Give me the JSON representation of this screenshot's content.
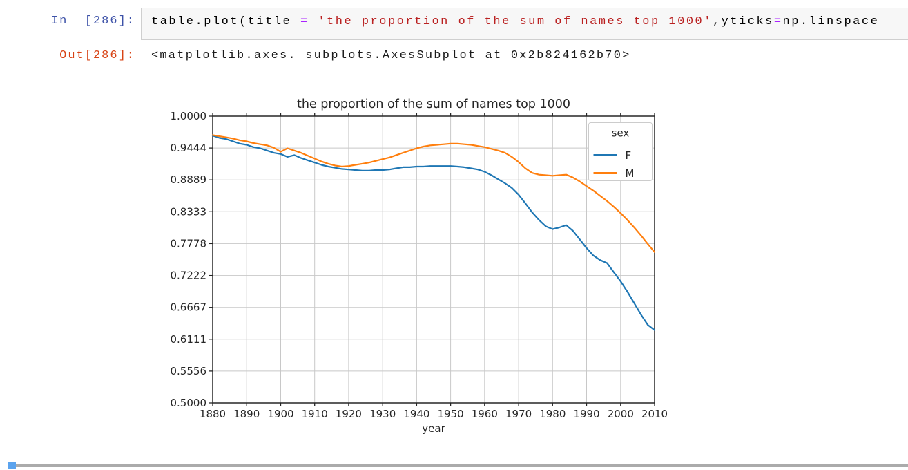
{
  "notebook": {
    "input_prompt": "In  [286]:",
    "output_prompt": "Out[286]:",
    "code_tokens": [
      {
        "text": "table.plot(title ",
        "type": "plain"
      },
      {
        "text": "= ",
        "type": "operator"
      },
      {
        "text": "'the proportion of the sum of names top 1000'",
        "type": "string"
      },
      {
        "text": ",yticks",
        "type": "plain"
      },
      {
        "text": "=",
        "type": "operator"
      },
      {
        "text": "np.linspace",
        "type": "plain"
      }
    ],
    "output_text": "<matplotlib.axes._subplots.AxesSubplot at 0x2b824162b70>"
  },
  "colors": {
    "input_prompt": "#3d52a8",
    "output_prompt": "#d84315",
    "operator_token": "#AA22FF",
    "string_token": "#BA2121",
    "next_cell_accent": "#5ba3ee",
    "grid_line": "#c8c8c8",
    "axis_text": "#262626"
  },
  "chart_data": {
    "type": "line",
    "title": "the proportion of the sum of names top 1000",
    "xlabel": "year",
    "ylabel": "",
    "legend_title": "sex",
    "legend_position": "upper right",
    "grid": true,
    "xlim": [
      1880,
      2010
    ],
    "ylim": [
      0.5,
      1.0
    ],
    "xticks": [
      1880,
      1890,
      1900,
      1910,
      1920,
      1930,
      1940,
      1950,
      1960,
      1970,
      1980,
      1990,
      2000,
      2010
    ],
    "yticks": [
      1.0,
      0.944444,
      0.888889,
      0.833333,
      0.777778,
      0.722222,
      0.666667,
      0.611111,
      0.555556,
      0.5
    ],
    "ytick_labels": [
      "1.0000",
      "0.9444",
      "0.8889",
      "0.8333",
      "0.7778",
      "0.7222",
      "0.6667",
      "0.6111",
      "0.5556",
      "0.5000"
    ],
    "x": [
      1880,
      1882,
      1884,
      1886,
      1888,
      1890,
      1892,
      1894,
      1896,
      1898,
      1900,
      1902,
      1904,
      1906,
      1908,
      1910,
      1912,
      1914,
      1916,
      1918,
      1920,
      1922,
      1924,
      1926,
      1928,
      1930,
      1932,
      1934,
      1936,
      1938,
      1940,
      1942,
      1944,
      1946,
      1948,
      1950,
      1952,
      1954,
      1956,
      1958,
      1960,
      1962,
      1964,
      1966,
      1968,
      1970,
      1972,
      1974,
      1976,
      1978,
      1980,
      1982,
      1984,
      1986,
      1988,
      1990,
      1992,
      1994,
      1996,
      1998,
      2000,
      2002,
      2004,
      2006,
      2008,
      2010
    ],
    "series": [
      {
        "name": "F",
        "color": "#1f77b4",
        "values": [
          0.966,
          0.962,
          0.96,
          0.956,
          0.952,
          0.95,
          0.946,
          0.944,
          0.94,
          0.936,
          0.934,
          0.929,
          0.932,
          0.927,
          0.923,
          0.919,
          0.915,
          0.912,
          0.91,
          0.908,
          0.907,
          0.906,
          0.905,
          0.905,
          0.906,
          0.906,
          0.907,
          0.909,
          0.911,
          0.911,
          0.912,
          0.912,
          0.913,
          0.913,
          0.913,
          0.913,
          0.912,
          0.911,
          0.909,
          0.907,
          0.903,
          0.897,
          0.89,
          0.883,
          0.875,
          0.863,
          0.848,
          0.832,
          0.819,
          0.808,
          0.803,
          0.806,
          0.81,
          0.8,
          0.785,
          0.77,
          0.757,
          0.749,
          0.744,
          0.728,
          0.712,
          0.694,
          0.674,
          0.654,
          0.636,
          0.627
        ]
      },
      {
        "name": "M",
        "color": "#ff7f0e",
        "values": [
          0.967,
          0.965,
          0.963,
          0.961,
          0.958,
          0.956,
          0.953,
          0.951,
          0.949,
          0.945,
          0.938,
          0.944,
          0.94,
          0.936,
          0.931,
          0.926,
          0.921,
          0.917,
          0.914,
          0.912,
          0.913,
          0.915,
          0.917,
          0.919,
          0.922,
          0.925,
          0.928,
          0.932,
          0.936,
          0.94,
          0.944,
          0.947,
          0.949,
          0.95,
          0.951,
          0.952,
          0.952,
          0.951,
          0.95,
          0.948,
          0.946,
          0.943,
          0.94,
          0.936,
          0.929,
          0.92,
          0.909,
          0.901,
          0.898,
          0.897,
          0.896,
          0.897,
          0.898,
          0.893,
          0.886,
          0.878,
          0.87,
          0.861,
          0.852,
          0.842,
          0.831,
          0.819,
          0.806,
          0.792,
          0.777,
          0.763
        ]
      }
    ]
  }
}
